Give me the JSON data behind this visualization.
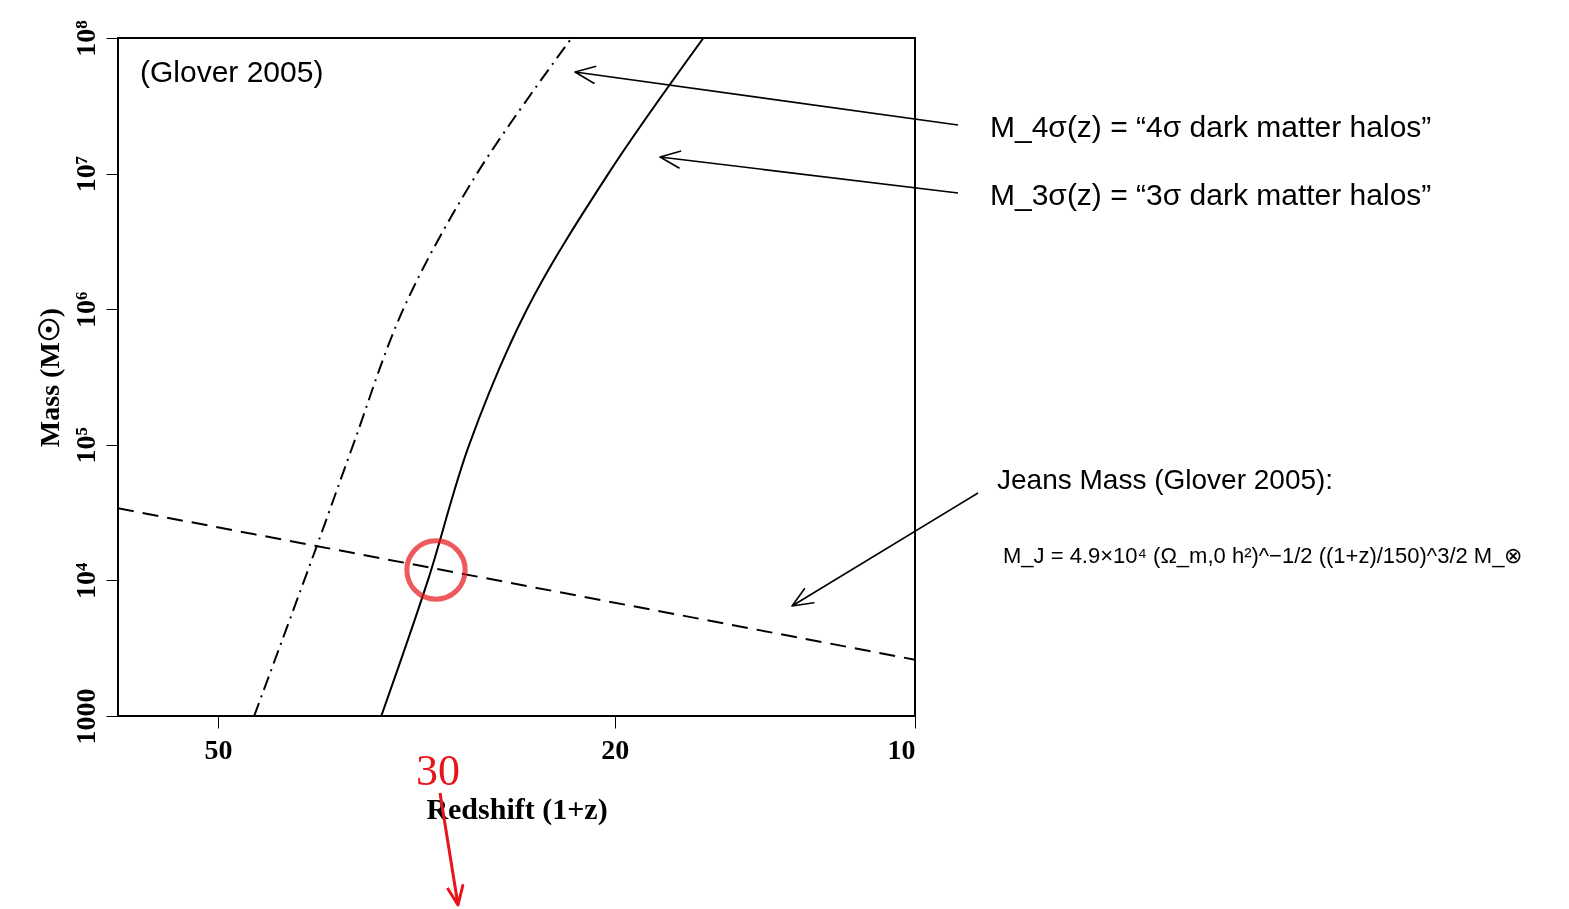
{
  "chart_data": {
    "type": "line",
    "xlabel": "Redshift (1+z)",
    "ylabel": "Mass (M☉)",
    "log": "xy",
    "xlim": [
      63,
      10
    ],
    "ylim": [
      1000,
      100000000
    ],
    "xticks": [
      50,
      20,
      10
    ],
    "yticks": [
      1000,
      {
        "value": 10000,
        "label": "10⁴"
      },
      {
        "value": 100000,
        "label": "10⁵"
      },
      {
        "value": 1000000,
        "label": "10⁶"
      },
      {
        "value": 10000000,
        "label": "10⁷"
      },
      {
        "value": 100000000,
        "label": "10⁸"
      }
    ],
    "grid": false,
    "series": [
      {
        "color": "#000000",
        "line_style": "dashdot",
        "x": [
          46.0,
          39.8,
          36.6,
          32.6,
          27.5,
          22.1
        ],
        "values": [
          1000,
          18000,
          100000,
          1000000,
          10000000,
          100000000
        ]
      },
      {
        "color": "#000000",
        "line_style": "solid",
        "x": [
          34.3,
          30.8,
          28.0,
          24.5,
          20.3,
          16.3
        ],
        "values": [
          1000,
          10000,
          100000,
          1000000,
          10000000,
          100000000
        ]
      },
      {
        "color": "#000000",
        "line_style": "dashed",
        "x": [
          63,
          10
        ],
        "values": [
          34000,
          2600
        ]
      }
    ],
    "annotations": [
      "(Glover 2005)",
      "M_4σ(z)   = “4σ dark matter halos”",
      "M_3σ(z)   = “3σ dark matter halos”",
      "Jeans Mass (Glover 2005):",
      "M_J = 4.9×10⁴ (Ω_m,0 h²)^−1/2 ((1+z)/150)^3/2 M_⊗",
      "30"
    ]
  }
}
